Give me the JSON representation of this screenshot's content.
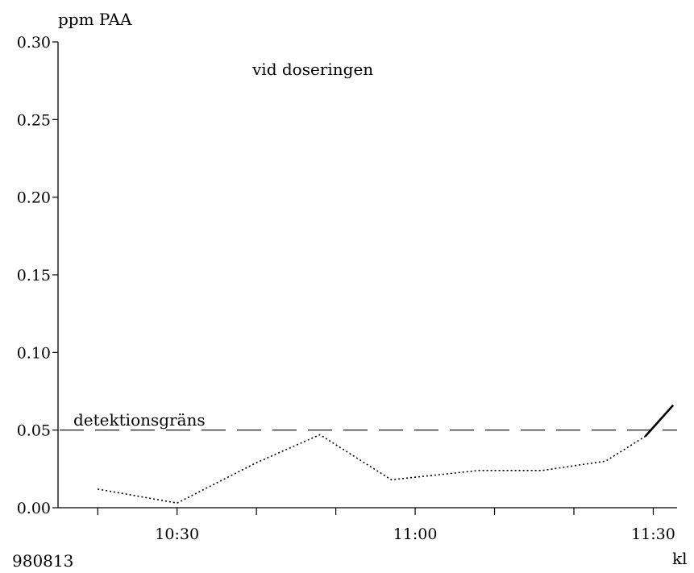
{
  "chart_data": {
    "type": "line",
    "title": "vid doseringen",
    "ylabel": "ppm PAA",
    "xlabel": "kl",
    "date_label": "980813",
    "ylim": [
      0,
      0.3
    ],
    "yticks": [
      {
        "value": 0.0,
        "label": "0.00"
      },
      {
        "value": 0.05,
        "label": "0.05"
      },
      {
        "value": 0.1,
        "label": "0.10"
      },
      {
        "value": 0.15,
        "label": "0.15"
      },
      {
        "value": 0.2,
        "label": "0.20"
      },
      {
        "value": 0.25,
        "label": "0.25"
      },
      {
        "value": 0.3,
        "label": "0.30"
      }
    ],
    "xlim": [
      "10:15",
      "11:33"
    ],
    "xticks": [
      "10:20",
      "10:30",
      "10:40",
      "10:50",
      "11:00",
      "11:10",
      "11:20",
      "11:30"
    ],
    "xtick_labels": [
      {
        "value": "10:30",
        "label": "10:30"
      },
      {
        "value": "11:00",
        "label": "11:00"
      },
      {
        "value": "11:30",
        "label": "11:30"
      }
    ],
    "series": [
      {
        "style": "dotted",
        "points": [
          {
            "x": "10:20",
            "y": 0.012
          },
          {
            "x": "10:30",
            "y": 0.003
          },
          {
            "x": "10:40",
            "y": 0.029
          },
          {
            "x": "10:48",
            "y": 0.047
          },
          {
            "x": "10:57",
            "y": 0.018
          },
          {
            "x": "11:08",
            "y": 0.024
          },
          {
            "x": "11:16",
            "y": 0.024
          },
          {
            "x": "11:24",
            "y": 0.03
          },
          {
            "x": "11:29",
            "y": 0.046
          }
        ]
      },
      {
        "style": "solid",
        "points": [
          {
            "x": "11:29",
            "y": 0.046
          },
          {
            "x": "11:32.5",
            "y": 0.066
          }
        ]
      }
    ],
    "reference_line": {
      "y": 0.05,
      "label": "detektionsgräns",
      "style": "dashed"
    }
  }
}
